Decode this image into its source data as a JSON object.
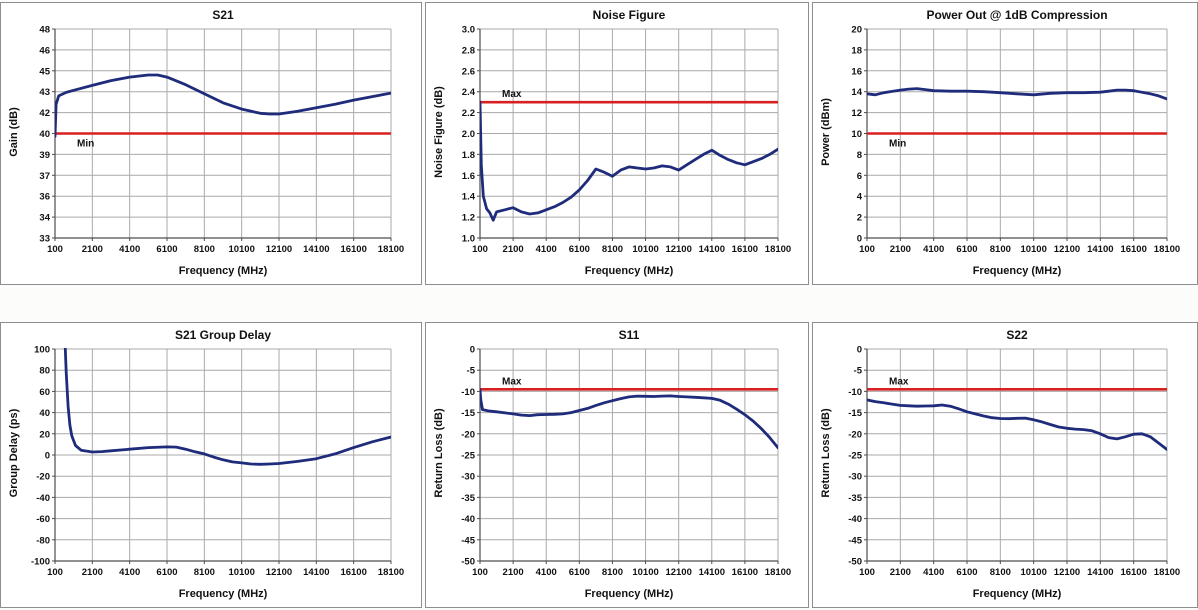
{
  "style": {
    "curve_color": "#1f2b7b",
    "limit_color": "#d92020",
    "grid_color": "#a9a9a9",
    "axis_color": "#4d4d4d",
    "panel_border": "#8e8e8e",
    "text_color": "#111111",
    "panel_background": "#ffffff"
  },
  "chart_data": [
    {
      "type": "line",
      "title": "S21",
      "xlabel": "Frequency (MHz)",
      "ylabel": "Gain (dB)",
      "x_ticks": [
        "100",
        "2100",
        "4100",
        "6100",
        "8100",
        "10100",
        "12100",
        "14100",
        "16100",
        "18100"
      ],
      "y_ticks": [
        "48",
        "46",
        "45",
        "43",
        "42",
        "40",
        "39",
        "37",
        "36",
        "34",
        "33"
      ],
      "xlim": [
        100,
        18100
      ],
      "ylim": [
        33,
        48
      ],
      "grid": true,
      "limit": {
        "label": "Min",
        "value": 40,
        "label_side": "below"
      },
      "series": [
        {
          "name": "S21 Gain",
          "color": "#1f2b7b",
          "points": [
            [
              100,
              40.3
            ],
            [
              160,
              42.6
            ],
            [
              300,
              43.2
            ],
            [
              700,
              43.45
            ],
            [
              1100,
              43.6
            ],
            [
              2100,
              43.95
            ],
            [
              3100,
              44.3
            ],
            [
              4100,
              44.55
            ],
            [
              5100,
              44.7
            ],
            [
              5600,
              44.7
            ],
            [
              6100,
              44.55
            ],
            [
              7100,
              44.0
            ],
            [
              8100,
              43.35
            ],
            [
              9100,
              42.7
            ],
            [
              10100,
              42.25
            ],
            [
              11100,
              41.95
            ],
            [
              11600,
              41.9
            ],
            [
              12100,
              41.9
            ],
            [
              13100,
              42.1
            ],
            [
              14100,
              42.35
            ],
            [
              15100,
              42.6
            ],
            [
              16100,
              42.9
            ],
            [
              17100,
              43.15
            ],
            [
              18100,
              43.4
            ]
          ]
        }
      ]
    },
    {
      "type": "line",
      "title": "Noise Figure",
      "xlabel": "Frequency (MHz)",
      "ylabel": "Noise Figure (dB)",
      "x_ticks": [
        "100",
        "2100",
        "4100",
        "6100",
        "8100",
        "10100",
        "12100",
        "14100",
        "16100",
        "18100"
      ],
      "y_ticks": [
        "3.0",
        "2.8",
        "2.6",
        "2.4",
        "2.2",
        "2.0",
        "1.8",
        "1.6",
        "1.4",
        "1.2",
        "1.0"
      ],
      "xlim": [
        100,
        18100
      ],
      "ylim": [
        1.0,
        3.0
      ],
      "grid": true,
      "limit": {
        "label": "Max",
        "value": 2.3,
        "label_side": "above"
      },
      "series": [
        {
          "name": "Noise Figure",
          "color": "#1f2b7b",
          "points": [
            [
              100,
              2.3
            ],
            [
              180,
              1.7
            ],
            [
              300,
              1.4
            ],
            [
              500,
              1.28
            ],
            [
              700,
              1.24
            ],
            [
              900,
              1.17
            ],
            [
              1100,
              1.25
            ],
            [
              1600,
              1.27
            ],
            [
              2100,
              1.29
            ],
            [
              2600,
              1.25
            ],
            [
              3100,
              1.23
            ],
            [
              3600,
              1.24
            ],
            [
              4100,
              1.27
            ],
            [
              4600,
              1.3
            ],
            [
              5100,
              1.34
            ],
            [
              5600,
              1.39
            ],
            [
              6100,
              1.46
            ],
            [
              6600,
              1.55
            ],
            [
              7100,
              1.66
            ],
            [
              7600,
              1.63
            ],
            [
              8100,
              1.59
            ],
            [
              8600,
              1.65
            ],
            [
              9100,
              1.68
            ],
            [
              9600,
              1.67
            ],
            [
              10100,
              1.66
            ],
            [
              10600,
              1.67
            ],
            [
              11100,
              1.69
            ],
            [
              11600,
              1.68
            ],
            [
              12100,
              1.65
            ],
            [
              12600,
              1.7
            ],
            [
              13100,
              1.75
            ],
            [
              13600,
              1.8
            ],
            [
              14100,
              1.84
            ],
            [
              14600,
              1.79
            ],
            [
              15100,
              1.75
            ],
            [
              15600,
              1.72
            ],
            [
              16100,
              1.7
            ],
            [
              16600,
              1.73
            ],
            [
              17100,
              1.76
            ],
            [
              17600,
              1.8
            ],
            [
              18100,
              1.85
            ]
          ]
        }
      ]
    },
    {
      "type": "line",
      "title": "Power Out @ 1dB Compression",
      "xlabel": "Frequency (MHz)",
      "ylabel": "Power (dBm)",
      "x_ticks": [
        "100",
        "2100",
        "4100",
        "6100",
        "8100",
        "10100",
        "12100",
        "14100",
        "16100",
        "18100"
      ],
      "y_ticks": [
        "20",
        "18",
        "16",
        "14",
        "12",
        "10",
        "8",
        "6",
        "4",
        "2",
        "0"
      ],
      "xlim": [
        100,
        18100
      ],
      "ylim": [
        0,
        20
      ],
      "grid": true,
      "limit": {
        "label": "Min",
        "value": 10,
        "label_side": "below"
      },
      "series": [
        {
          "name": "Power Out",
          "color": "#1f2b7b",
          "points": [
            [
              100,
              13.8
            ],
            [
              600,
              13.7
            ],
            [
              1100,
              13.9
            ],
            [
              2100,
              14.15
            ],
            [
              2600,
              14.25
            ],
            [
              3100,
              14.3
            ],
            [
              3600,
              14.2
            ],
            [
              4100,
              14.1
            ],
            [
              5100,
              14.05
            ],
            [
              6100,
              14.05
            ],
            [
              7100,
              14.0
            ],
            [
              8100,
              13.9
            ],
            [
              9100,
              13.8
            ],
            [
              10100,
              13.7
            ],
            [
              11100,
              13.85
            ],
            [
              12100,
              13.9
            ],
            [
              13100,
              13.9
            ],
            [
              14100,
              13.95
            ],
            [
              14600,
              14.05
            ],
            [
              15100,
              14.15
            ],
            [
              15600,
              14.15
            ],
            [
              16100,
              14.1
            ],
            [
              17100,
              13.8
            ],
            [
              17600,
              13.6
            ],
            [
              18100,
              13.3
            ]
          ]
        }
      ]
    },
    {
      "type": "line",
      "title": "S21 Group Delay",
      "xlabel": "Frequency (MHz)",
      "ylabel": "Group Delay (ps)",
      "x_ticks": [
        "100",
        "2100",
        "4100",
        "6100",
        "8100",
        "10100",
        "12100",
        "14100",
        "16100",
        "18100"
      ],
      "y_ticks": [
        "100",
        "80",
        "60",
        "40",
        "20",
        "0",
        "-20",
        "-40",
        "-60",
        "-80",
        "-100"
      ],
      "xlim": [
        100,
        18100
      ],
      "ylim": [
        -100,
        100
      ],
      "grid": true,
      "limit": null,
      "series": [
        {
          "name": "S21 Group Delay",
          "color": "#1f2b7b",
          "points": [
            [
              640,
              105
            ],
            [
              700,
              78
            ],
            [
              800,
              46
            ],
            [
              900,
              28
            ],
            [
              1000,
              18
            ],
            [
              1200,
              9
            ],
            [
              1500,
              4.5
            ],
            [
              2100,
              2.8
            ],
            [
              2600,
              3.2
            ],
            [
              3100,
              4
            ],
            [
              4100,
              5.5
            ],
            [
              5100,
              7
            ],
            [
              6100,
              7.6
            ],
            [
              6600,
              7.5
            ],
            [
              7100,
              5.5
            ],
            [
              7600,
              3
            ],
            [
              8100,
              1
            ],
            [
              8600,
              -2
            ],
            [
              9100,
              -4.5
            ],
            [
              9600,
              -6.5
            ],
            [
              10100,
              -7.5
            ],
            [
              10600,
              -8.5
            ],
            [
              11100,
              -8.8
            ],
            [
              11600,
              -8.5
            ],
            [
              12100,
              -8
            ],
            [
              13100,
              -6
            ],
            [
              14100,
              -3.5
            ],
            [
              15100,
              1
            ],
            [
              16100,
              7
            ],
            [
              17100,
              12.5
            ],
            [
              18100,
              17
            ]
          ]
        }
      ]
    },
    {
      "type": "line",
      "title": "S11",
      "xlabel": "Frequency (MHz)",
      "ylabel": "Return Loss (dB)",
      "x_ticks": [
        "100",
        "2100",
        "4100",
        "6100",
        "8100",
        "10100",
        "12100",
        "14100",
        "16100",
        "18100"
      ],
      "y_ticks": [
        "0",
        "-5",
        "-10",
        "-15",
        "-20",
        "-25",
        "-30",
        "-35",
        "-40",
        "-45",
        "-50"
      ],
      "xlim": [
        100,
        18100
      ],
      "ylim": [
        -50,
        0
      ],
      "grid": true,
      "limit": {
        "label": "Max",
        "value": -9.5,
        "label_side": "above"
      },
      "series": [
        {
          "name": "S11",
          "color": "#1f2b7b",
          "points": [
            [
              100,
              -9.6
            ],
            [
              150,
              -12
            ],
            [
              250,
              -14.3
            ],
            [
              600,
              -14.6
            ],
            [
              1100,
              -14.8
            ],
            [
              2100,
              -15.3
            ],
            [
              2600,
              -15.6
            ],
            [
              3100,
              -15.7
            ],
            [
              3600,
              -15.5
            ],
            [
              4100,
              -15.45
            ],
            [
              4600,
              -15.4
            ],
            [
              5100,
              -15.3
            ],
            [
              5600,
              -15.0
            ],
            [
              6100,
              -14.5
            ],
            [
              6600,
              -14.0
            ],
            [
              7100,
              -13.3
            ],
            [
              7600,
              -12.7
            ],
            [
              8100,
              -12.2
            ],
            [
              8600,
              -11.7
            ],
            [
              9100,
              -11.3
            ],
            [
              9600,
              -11.1
            ],
            [
              10100,
              -11.15
            ],
            [
              10600,
              -11.2
            ],
            [
              11100,
              -11.1
            ],
            [
              11600,
              -11.05
            ],
            [
              12100,
              -11.2
            ],
            [
              12600,
              -11.3
            ],
            [
              13100,
              -11.4
            ],
            [
              13600,
              -11.5
            ],
            [
              14100,
              -11.65
            ],
            [
              14600,
              -12.1
            ],
            [
              15100,
              -13.0
            ],
            [
              15600,
              -14.2
            ],
            [
              16100,
              -15.5
            ],
            [
              16600,
              -17.0
            ],
            [
              17100,
              -18.8
            ],
            [
              17600,
              -20.9
            ],
            [
              18100,
              -23.3
            ]
          ]
        }
      ]
    },
    {
      "type": "line",
      "title": "S22",
      "xlabel": "Frequency (MHz)",
      "ylabel": "Return Loss (dB)",
      "x_ticks": [
        "100",
        "2100",
        "4100",
        "6100",
        "8100",
        "10100",
        "12100",
        "14100",
        "16100",
        "18100"
      ],
      "y_ticks": [
        "0",
        "-5",
        "-10",
        "-15",
        "-20",
        "-25",
        "-30",
        "-35",
        "-40",
        "-45",
        "-50"
      ],
      "xlim": [
        100,
        18100
      ],
      "ylim": [
        -50,
        0
      ],
      "grid": true,
      "limit": {
        "label": "Max",
        "value": -9.5,
        "label_side": "above"
      },
      "series": [
        {
          "name": "S22",
          "color": "#1f2b7b",
          "points": [
            [
              100,
              -12.0
            ],
            [
              600,
              -12.4
            ],
            [
              1100,
              -12.7
            ],
            [
              1600,
              -13.0
            ],
            [
              2100,
              -13.3
            ],
            [
              2600,
              -13.4
            ],
            [
              3100,
              -13.5
            ],
            [
              3600,
              -13.45
            ],
            [
              4100,
              -13.4
            ],
            [
              4600,
              -13.2
            ],
            [
              5100,
              -13.5
            ],
            [
              5600,
              -14.1
            ],
            [
              6100,
              -14.8
            ],
            [
              6600,
              -15.3
            ],
            [
              7100,
              -15.8
            ],
            [
              7600,
              -16.2
            ],
            [
              8100,
              -16.4
            ],
            [
              8600,
              -16.45
            ],
            [
              9100,
              -16.35
            ],
            [
              9600,
              -16.3
            ],
            [
              10100,
              -16.7
            ],
            [
              10600,
              -17.2
            ],
            [
              11100,
              -17.8
            ],
            [
              11600,
              -18.4
            ],
            [
              12100,
              -18.7
            ],
            [
              12600,
              -18.9
            ],
            [
              13100,
              -19.0
            ],
            [
              13600,
              -19.3
            ],
            [
              14100,
              -20.0
            ],
            [
              14600,
              -20.9
            ],
            [
              15100,
              -21.2
            ],
            [
              15600,
              -20.7
            ],
            [
              16100,
              -20.1
            ],
            [
              16600,
              -20.0
            ],
            [
              17100,
              -20.7
            ],
            [
              17600,
              -22.2
            ],
            [
              18100,
              -23.7
            ]
          ]
        }
      ]
    }
  ]
}
